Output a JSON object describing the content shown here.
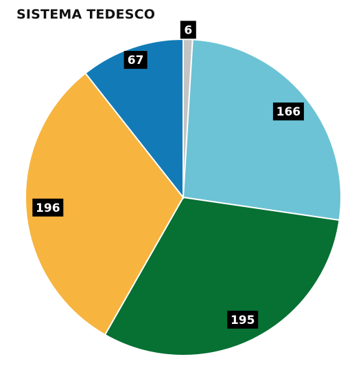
{
  "chart_data": {
    "type": "pie",
    "title": "SISTEMA TEDESCO",
    "slices": [
      {
        "value": 6,
        "color": "#c4c4c4"
      },
      {
        "value": 166,
        "color": "#6cc3d5"
      },
      {
        "value": 195,
        "color": "#077033"
      },
      {
        "value": 196,
        "color": "#f7b43f"
      },
      {
        "value": 67,
        "color": "#127bb7"
      }
    ],
    "start_angle_deg": 0,
    "direction": "clockwise",
    "label_style": "white bold number on black box"
  }
}
